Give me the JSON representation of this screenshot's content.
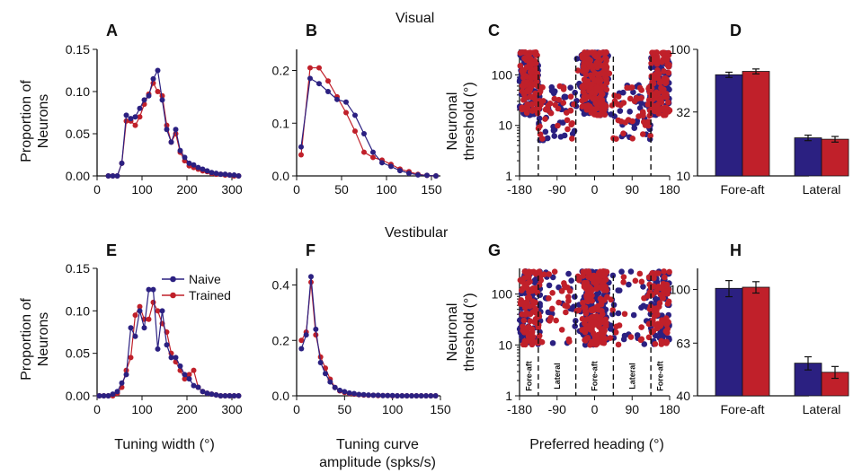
{
  "sections": {
    "top": "Visual",
    "bottom": "Vestibular"
  },
  "legend": {
    "naive": "Naive",
    "trained": "Trained"
  },
  "colors": {
    "naive": "#2b2081",
    "trained": "#c0202a"
  },
  "labels": {
    "ylabel_proportion": [
      "Proportion of",
      "Neurons"
    ],
    "ylabel_threshold": [
      "Neuronal",
      "threshold (°)"
    ],
    "xlabel_width": "Tuning width (°)",
    "xlabel_amplitude": [
      "Tuning curve",
      "amplitude (spks/s)"
    ],
    "xlabel_heading": "Preferred heading (°)"
  },
  "region_labels": [
    "Fore-aft",
    "Lateral",
    "Fore-aft",
    "Lateral",
    "Fore-aft"
  ],
  "chart_data": [
    {
      "panel": "A",
      "type": "line",
      "xlim": [
        0,
        320
      ],
      "ylim": [
        0,
        0.15
      ],
      "xticks": [
        0,
        100,
        200,
        300
      ],
      "yticks": [
        "0.00",
        "0.05",
        "0.10",
        "0.15"
      ],
      "x": [
        25,
        35,
        45,
        55,
        65,
        75,
        85,
        95,
        105,
        115,
        125,
        135,
        145,
        155,
        165,
        175,
        185,
        195,
        205,
        215,
        225,
        235,
        245,
        255,
        265,
        275,
        285,
        295,
        305,
        315
      ],
      "series": [
        {
          "name": "Naive",
          "values": [
            0,
            0,
            0,
            0.015,
            0.072,
            0.068,
            0.07,
            0.08,
            0.09,
            0.095,
            0.115,
            0.125,
            0.09,
            0.055,
            0.04,
            0.055,
            0.03,
            0.022,
            0.015,
            0.013,
            0.01,
            0.008,
            0.006,
            0.004,
            0.003,
            0.002,
            0.002,
            0.001,
            0.001,
            0
          ]
        },
        {
          "name": "Trained",
          "values": [
            0,
            0,
            0,
            0.015,
            0.065,
            0.065,
            0.06,
            0.07,
            0.085,
            0.097,
            0.11,
            0.1,
            0.095,
            0.06,
            0.04,
            0.05,
            0.028,
            0.018,
            0.012,
            0.01,
            0.008,
            0.006,
            0.005,
            0.003,
            0.002,
            0.002,
            0.001,
            0.001,
            0,
            0
          ]
        }
      ]
    },
    {
      "panel": "B",
      "type": "line",
      "xlim": [
        0,
        160
      ],
      "ylim": [
        0,
        0.24
      ],
      "xticks": [
        0,
        50,
        100,
        150
      ],
      "yticks": [
        "0.0",
        "0.1",
        "0.2"
      ],
      "x": [
        5,
        15,
        25,
        35,
        45,
        55,
        65,
        75,
        85,
        95,
        105,
        115,
        125,
        135,
        145,
        155
      ],
      "series": [
        {
          "name": "Naive",
          "values": [
            0.055,
            0.185,
            0.175,
            0.16,
            0.145,
            0.14,
            0.115,
            0.08,
            0.045,
            0.025,
            0.018,
            0.01,
            0.005,
            0.002,
            0.001,
            0
          ]
        },
        {
          "name": "Trained",
          "values": [
            0.04,
            0.205,
            0.205,
            0.18,
            0.15,
            0.12,
            0.085,
            0.045,
            0.035,
            0.03,
            0.022,
            0.013,
            0.008,
            0.003,
            0.001,
            0
          ]
        }
      ]
    },
    {
      "panel": "C",
      "type": "scatter",
      "xlim": [
        -180,
        180
      ],
      "ylog": true,
      "ylim": [
        1,
        320
      ],
      "xticks": [
        -180,
        -90,
        0,
        90,
        180
      ],
      "yticks": [
        1,
        10,
        100
      ],
      "dividers": [
        -135,
        -45,
        45,
        135
      ],
      "series": [
        {
          "name": "Naive",
          "n": 520,
          "gap_max": 95
        },
        {
          "name": "Trained",
          "n": 430,
          "gap_max": 95
        }
      ]
    },
    {
      "panel": "D",
      "type": "bar",
      "ylog": true,
      "ylim": [
        10,
        100
      ],
      "yticks": [
        10,
        32,
        100
      ],
      "categories": [
        "Fore-aft",
        "Lateral"
      ],
      "series": [
        {
          "name": "Naive",
          "values": [
            63,
            20
          ],
          "errors": [
            3,
            1
          ]
        },
        {
          "name": "Trained",
          "values": [
            67,
            19.5
          ],
          "errors": [
            3,
            1
          ]
        }
      ]
    },
    {
      "panel": "E",
      "type": "line",
      "xlim": [
        0,
        320
      ],
      "ylim": [
        0,
        0.15
      ],
      "xticks": [
        0,
        100,
        200,
        300
      ],
      "yticks": [
        "0.00",
        "0.05",
        "0.10",
        "0.15"
      ],
      "x": [
        5,
        15,
        25,
        35,
        45,
        55,
        65,
        75,
        85,
        95,
        105,
        115,
        125,
        135,
        145,
        155,
        165,
        175,
        185,
        195,
        205,
        215,
        225,
        235,
        245,
        255,
        265,
        275,
        285,
        295,
        305,
        315
      ],
      "series": [
        {
          "name": "Naive",
          "values": [
            0,
            0,
            0,
            0.002,
            0.005,
            0.015,
            0.025,
            0.08,
            0.07,
            0.1,
            0.08,
            0.125,
            0.125,
            0.055,
            0.1,
            0.06,
            0.045,
            0.045,
            0.035,
            0.025,
            0.02,
            0.012,
            0.01,
            0.005,
            0.003,
            0.002,
            0.001,
            0,
            0,
            0,
            0,
            0
          ]
        },
        {
          "name": "Trained",
          "values": [
            0,
            0,
            0,
            0,
            0.003,
            0.01,
            0.03,
            0.045,
            0.095,
            0.105,
            0.09,
            0.09,
            0.11,
            0.1,
            0.085,
            0.075,
            0.05,
            0.04,
            0.03,
            0.02,
            0.025,
            0.03,
            0.01,
            0.005,
            0.003,
            0.002,
            0.001,
            0,
            0,
            0,
            0,
            0
          ]
        }
      ]
    },
    {
      "panel": "F",
      "type": "line",
      "xlim": [
        0,
        150
      ],
      "ylim": [
        0,
        0.46
      ],
      "xticks": [
        0,
        50,
        100,
        150
      ],
      "yticks": [
        "0.0",
        "0.2",
        "0.4"
      ],
      "x": [
        5,
        10,
        15,
        20,
        25,
        30,
        35,
        40,
        45,
        50,
        55,
        60,
        65,
        70,
        75,
        80,
        85,
        90,
        95,
        100,
        105,
        110,
        115,
        120,
        125,
        130,
        135,
        140,
        145
      ],
      "series": [
        {
          "name": "Naive",
          "values": [
            0.17,
            0.22,
            0.43,
            0.24,
            0.12,
            0.08,
            0.05,
            0.03,
            0.02,
            0.015,
            0.01,
            0.008,
            0.005,
            0.004,
            0.003,
            0.002,
            0.002,
            0.001,
            0.001,
            0.001,
            0,
            0,
            0,
            0,
            0,
            0,
            0,
            0,
            0
          ]
        },
        {
          "name": "Trained",
          "values": [
            0.2,
            0.23,
            0.41,
            0.22,
            0.14,
            0.1,
            0.06,
            0.03,
            0.018,
            0.012,
            0.008,
            0.006,
            0.004,
            0.003,
            0.002,
            0.002,
            0.001,
            0.001,
            0.001,
            0,
            0,
            0,
            0,
            0,
            0,
            0,
            0,
            0,
            0
          ]
        }
      ]
    },
    {
      "panel": "G",
      "type": "scatter",
      "xlim": [
        -180,
        180
      ],
      "ylog": true,
      "ylim": [
        1,
        320
      ],
      "xticks": [
        -180,
        -90,
        0,
        90,
        180
      ],
      "yticks": [
        1,
        10,
        100
      ],
      "dividers": [
        -135,
        -45,
        45,
        135
      ],
      "series": [
        {
          "name": "Naive",
          "n": 380,
          "gap_max": 95
        },
        {
          "name": "Trained",
          "n": 360,
          "gap_max": 95
        }
      ]
    },
    {
      "panel": "H",
      "type": "bar",
      "ylog": true,
      "ylim": [
        40,
        120
      ],
      "yticks": [
        40,
        63,
        100
      ],
      "categories": [
        "Fore-aft",
        "Lateral"
      ],
      "series": [
        {
          "name": "Naive",
          "values": [
            101,
            53
          ],
          "errors": [
            7,
            3
          ]
        },
        {
          "name": "Trained",
          "values": [
            102,
            49
          ],
          "errors": [
            5,
            2.5
          ]
        }
      ]
    }
  ]
}
